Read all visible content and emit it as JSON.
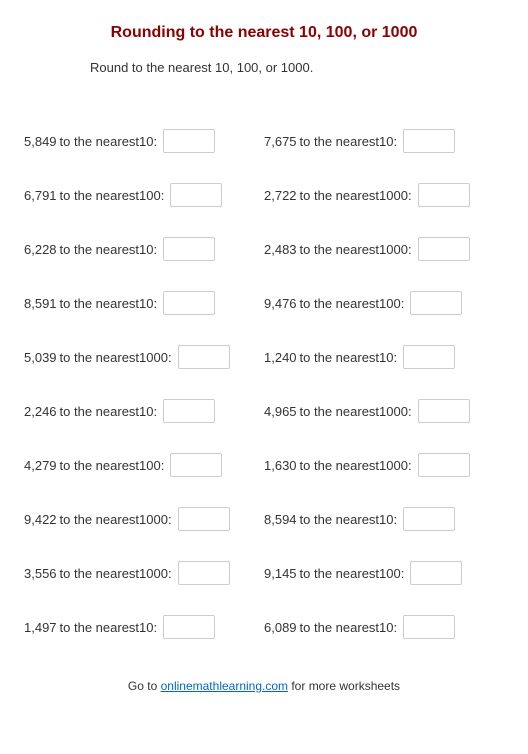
{
  "title": {
    "text": "Rounding to the nearest 10, 100, or 1000",
    "color": "#8b0000",
    "fontsize": 16
  },
  "instructions": "Round to the nearest 10, 100, or 1000.",
  "join_text": " to the nearest ",
  "columns": [
    [
      {
        "number": "5,849",
        "unit": "10"
      },
      {
        "number": "6,791",
        "unit": "100"
      },
      {
        "number": "6,228",
        "unit": "10"
      },
      {
        "number": "8,591",
        "unit": "10"
      },
      {
        "number": "5,039",
        "unit": "1000"
      },
      {
        "number": "2,246",
        "unit": "10"
      },
      {
        "number": "4,279",
        "unit": "100"
      },
      {
        "number": "9,422",
        "unit": "1000"
      },
      {
        "number": "3,556",
        "unit": "1000"
      },
      {
        "number": "1,497",
        "unit": "10"
      }
    ],
    [
      {
        "number": "7,675",
        "unit": "10"
      },
      {
        "number": "2,722",
        "unit": "1000"
      },
      {
        "number": "2,483",
        "unit": "1000"
      },
      {
        "number": "9,476",
        "unit": "100"
      },
      {
        "number": "1,240",
        "unit": "10"
      },
      {
        "number": "4,965",
        "unit": "1000"
      },
      {
        "number": "1,630",
        "unit": "1000"
      },
      {
        "number": "8,594",
        "unit": "10"
      },
      {
        "number": "9,145",
        "unit": "100"
      },
      {
        "number": "6,089",
        "unit": "10"
      }
    ]
  ],
  "footer": {
    "prefix": "Go to ",
    "link_text": "onlinemathlearning.com",
    "suffix": " for more worksheets"
  },
  "colors": {
    "text": "#333333",
    "link": "#0066cc",
    "input_border": "#cccccc",
    "background": "#ffffff"
  }
}
